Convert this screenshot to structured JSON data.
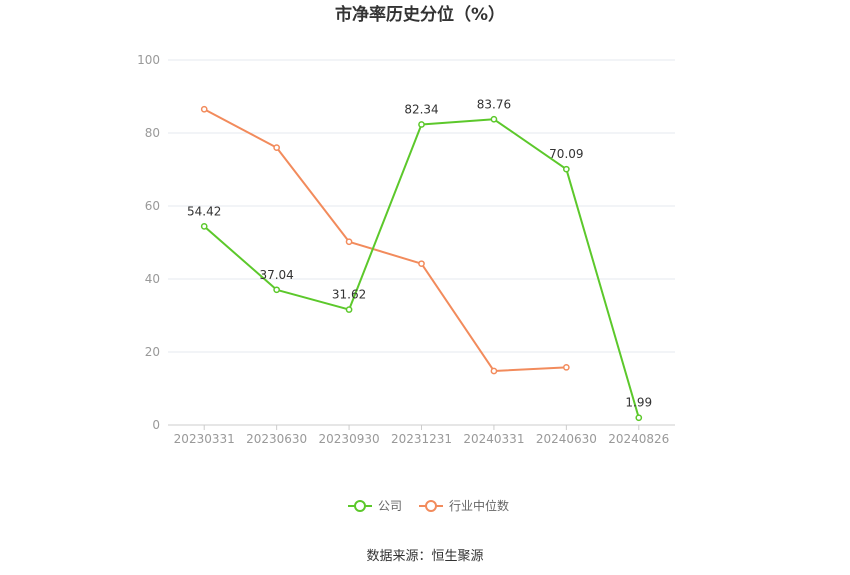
{
  "chart_data": {
    "type": "line",
    "title": "市净率历史分位（%）",
    "categories": [
      "20230331",
      "20230630",
      "20230930",
      "20231231",
      "20240331",
      "20240630",
      "20240826"
    ],
    "ylim": [
      0,
      100
    ],
    "yticks": [
      0,
      20,
      40,
      60,
      80,
      100
    ],
    "grid": true,
    "legend_position": "bottom-center",
    "series": [
      {
        "name": "公司",
        "color": "#5cc82b",
        "values": [
          54.42,
          37.04,
          31.62,
          82.34,
          83.76,
          70.09,
          1.99
        ],
        "labels": [
          "54.42",
          "37.04",
          "31.62",
          "82.34",
          "83.76",
          "70.09",
          "1.99"
        ]
      },
      {
        "name": "行业中位数",
        "color": "#f28b5c",
        "values": [
          86.5,
          76.0,
          50.2,
          44.2,
          14.8,
          15.8,
          null
        ]
      }
    ]
  },
  "footer": {
    "source": "数据来源：恒生聚源"
  }
}
